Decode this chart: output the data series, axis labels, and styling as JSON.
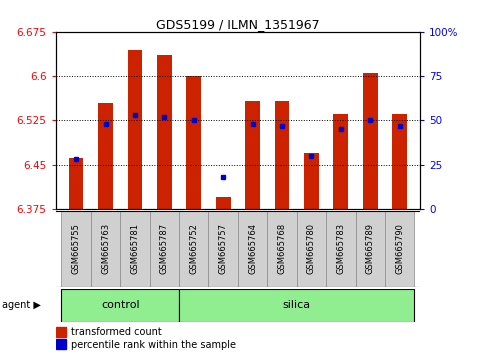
{
  "title": "GDS5199 / ILMN_1351967",
  "samples": [
    "GSM665755",
    "GSM665763",
    "GSM665781",
    "GSM665787",
    "GSM665752",
    "GSM665757",
    "GSM665764",
    "GSM665768",
    "GSM665780",
    "GSM665783",
    "GSM665789",
    "GSM665790"
  ],
  "groups": [
    "control",
    "control",
    "control",
    "control",
    "silica",
    "silica",
    "silica",
    "silica",
    "silica",
    "silica",
    "silica",
    "silica"
  ],
  "transformed_count": [
    6.462,
    6.555,
    6.645,
    6.635,
    6.6,
    6.395,
    6.558,
    6.558,
    6.47,
    6.535,
    6.605,
    6.535
  ],
  "percentile_rank": [
    28,
    48,
    53,
    52,
    50,
    18,
    48,
    47,
    30,
    45,
    50,
    47
  ],
  "y_min": 6.375,
  "y_max": 6.675,
  "y_ticks": [
    6.375,
    6.45,
    6.525,
    6.6,
    6.675
  ],
  "y_tick_labels": [
    "6.375",
    "6.45",
    "6.525",
    "6.6",
    "6.675"
  ],
  "right_y_ticks": [
    0,
    25,
    50,
    75,
    100
  ],
  "right_y_labels": [
    "0",
    "25",
    "50",
    "75",
    "100%"
  ],
  "bar_color": "#cc2200",
  "dot_color": "#0000cc",
  "group_color": "#90ee90",
  "sample_box_color": "#d0d0d0",
  "legend_bar_label": "transformed count",
  "legend_dot_label": "percentile rank within the sample",
  "bar_bottom": 6.375,
  "n_control": 4,
  "n_silica": 8
}
